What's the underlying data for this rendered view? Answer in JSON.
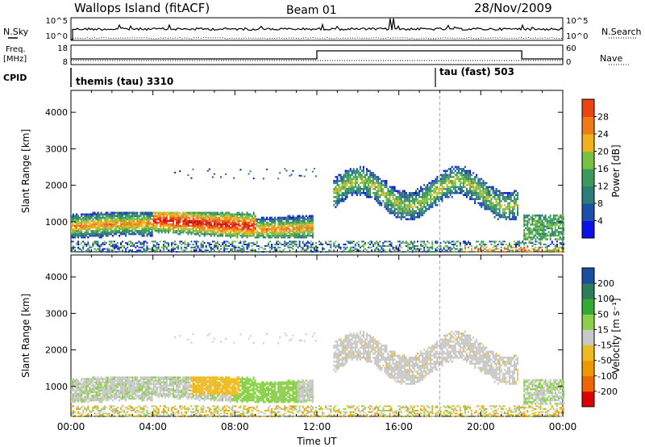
{
  "header": {
    "station": "Wallops Island (fitACF)",
    "beam": "Beam 01",
    "date": "28/Nov/2009"
  },
  "top_panels": {
    "nsky_label": "N.Sky",
    "nsky_ticks": [
      "10^5",
      "10^0"
    ],
    "nsearch_label": "N.Search",
    "nsearch_ticks": [
      "10^5",
      "10^0"
    ],
    "freq_label_line1": "Freq.",
    "freq_label_line2": "[MHz]",
    "freq_ticks": [
      "18",
      "8"
    ],
    "nave_label": "Nave",
    "nave_ticks": [
      "60",
      "0"
    ],
    "cpid_label": "CPID",
    "cpid_segments": [
      {
        "label": "themis (tau) 3310",
        "start_hour": 0
      },
      {
        "label": "tau (fast) 503",
        "start_hour": 18.0
      }
    ]
  },
  "chart_data": [
    {
      "type": "heatmap",
      "name": "power",
      "ylabel": "Slant Range [km]",
      "xlim_hours": [
        0,
        24
      ],
      "ylim": [
        180,
        4600
      ],
      "yticks": [
        "1000",
        "2000",
        "3000",
        "4000"
      ],
      "colorbar_label": "Power [dB]",
      "colorbar_ticks": [
        "4",
        "8",
        "12",
        "16",
        "20",
        "24",
        "28"
      ],
      "colorbar_colors": [
        "#0b12e6",
        "#1e4fa8",
        "#2d7d76",
        "#3e9a5a",
        "#7ac142",
        "#f0b11d",
        "#f07a17",
        "#e84510",
        "#d6100c",
        "#d6100c"
      ],
      "description_regions": [
        {
          "time": [
            0,
            11.5
          ],
          "range": [
            600,
            1300
          ],
          "power": "8-28"
        },
        {
          "time": [
            12.5,
            22
          ],
          "range": [
            1200,
            2500
          ],
          "power": "4-24"
        },
        {
          "time": [
            22,
            24
          ],
          "range": [
            500,
            1200
          ],
          "power": "4-24"
        }
      ]
    },
    {
      "type": "heatmap",
      "name": "velocity",
      "ylabel": "Slant Range [km]",
      "xlim_hours": [
        0,
        24
      ],
      "ylim": [
        180,
        4600
      ],
      "yticks": [
        "1000",
        "2000",
        "3000",
        "4000"
      ],
      "colorbar_label": "Velocity [m s⁻¹]",
      "colorbar_ticks": [
        "-200",
        "-100",
        "-50",
        "-15",
        "15",
        "50",
        "100",
        "200"
      ],
      "colorbar_colors": [
        "#dd0000",
        "#dd0000",
        "#ee6600",
        "#ee9900",
        "#eebb22",
        "#c8c8c8",
        "#8bd04a",
        "#33aa33",
        "#2d7d5a",
        "#1a4fa0",
        "#1020d0"
      ],
      "xlabel": "Time UT",
      "xticks": [
        "00:00",
        "04:00",
        "08:00",
        "12:00",
        "16:00",
        "20:00",
        "00:00"
      ]
    }
  ],
  "colors": {
    "trace": "#000000",
    "axis": "#000000"
  }
}
